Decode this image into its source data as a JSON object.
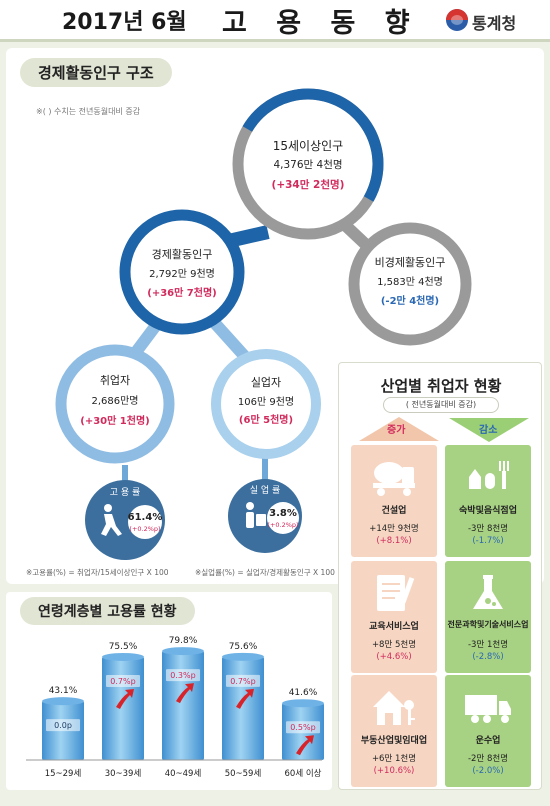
{
  "header": {
    "year_month": "2017년 6월",
    "title": "고 용 동 향",
    "logo_text": "통계청"
  },
  "structure": {
    "section_title": "경제활동인구 구조",
    "note": "※( ) 수치는 전년동월대비 증감",
    "nodes": {
      "pop15": {
        "title": "15세이상인구",
        "value": "4,376만 4천명",
        "change": "(+34만 2천명)"
      },
      "active": {
        "title": "경제활동인구",
        "value": "2,792만 9천명",
        "change": "(+36만 7천명)"
      },
      "inactive": {
        "title": "비경제활동인구",
        "value": "1,583만 4천명",
        "change": "(-2만 4천명)"
      },
      "employed": {
        "title": "취업자",
        "value": "2,686만명",
        "change": "(+30만 1천명)"
      },
      "unemployed": {
        "title": "실업자",
        "value": "106만 9천명",
        "change": "(6만 5천명)"
      }
    },
    "employment_rate": {
      "label": "고 용 률",
      "value": "61.4%",
      "change": "(+0.2%p)"
    },
    "unemployment_rate": {
      "label": "실 업 률",
      "value": "3.8%",
      "change": "(+0.2%p)"
    },
    "formula_employment": "※고용률(%) = 취업자/15세이상인구 X 100",
    "formula_unemployment": "※실업률(%) = 실업자/경제활동인구 X 100",
    "colors": {
      "dark_blue": "#1e64a8",
      "light_blue": "#6ea8d8",
      "pale_blue": "#a9d0ec",
      "gray": "#9a9a9a",
      "red": "#d12a5c",
      "blue_text": "#2a68b3"
    }
  },
  "industry": {
    "title": "산업별 취업자 현황",
    "subtitle": "( 전년동월대비 증감)",
    "increase_label": "증가",
    "decrease_label": "감소",
    "increase": [
      {
        "name": "건설업",
        "value": "+14만 9천명",
        "rate": "(+8.1%)",
        "icon": "cement-truck-icon"
      },
      {
        "name": "교육서비스업",
        "value": "+8만 5천명",
        "rate": "(+4.6%)",
        "icon": "document-pen-icon"
      },
      {
        "name": "부동산업및임대업",
        "value": "+6만 1천명",
        "rate": "(+10.6%)",
        "icon": "house-key-icon"
      }
    ],
    "decrease": [
      {
        "name": "숙박및음식점업",
        "value": "-3만 8천명",
        "rate": "(-1.7%)",
        "icon": "restaurant-icon"
      },
      {
        "name": "전문과학및기술서비스업",
        "value": "-3만 1천명",
        "rate": "(-2.8%)",
        "icon": "flask-icon"
      },
      {
        "name": "운수업",
        "value": "-2만 8천명",
        "rate": "(-2.0%)",
        "icon": "truck-icon"
      }
    ]
  },
  "age_chart": {
    "title": "연령계층별 고용률 현황",
    "chart_data": {
      "type": "bar",
      "categories": [
        "15~29세",
        "30~39세",
        "40~49세",
        "50~59세",
        "60세 이상"
      ],
      "values": [
        43.1,
        75.5,
        79.8,
        75.6,
        41.6
      ],
      "value_labels": [
        "43.1%",
        "75.5%",
        "79.8%",
        "75.6%",
        "41.6%"
      ],
      "changes": [
        "0.0p",
        "0.7%p",
        "0.3%p",
        "0.7%p",
        "0.5%p"
      ],
      "ylim": [
        0,
        85
      ]
    }
  }
}
